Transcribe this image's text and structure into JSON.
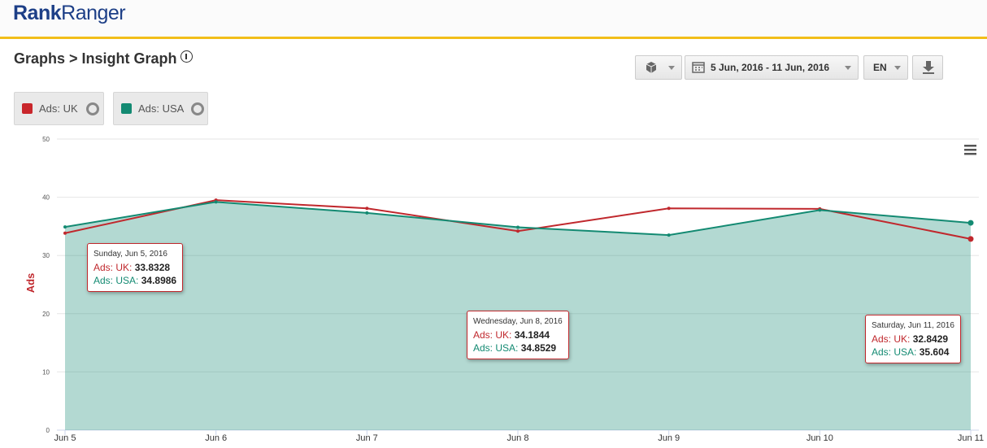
{
  "header": {
    "logo_part1": "Rank",
    "logo_part2": "Ranger",
    "title": "Graphs > Insight Graph"
  },
  "toolbar": {
    "date_range": "5 Jun, 2016 - 11 Jun, 2016",
    "language": "EN"
  },
  "chart_data": {
    "type": "line",
    "y_label": "Ads",
    "categories": [
      "Jun 5",
      "Jun 6",
      "Jun 7",
      "Jun 8",
      "Jun 9",
      "Jun 10",
      "Jun 11"
    ],
    "series": [
      {
        "name": "Ads: UK",
        "color": "#c0282d",
        "fill": false,
        "values": [
          33.8328,
          39.5,
          38.1,
          34.1844,
          38.1,
          38.0,
          32.8429
        ]
      },
      {
        "name": "Ads: USA",
        "color": "#138a72",
        "fill": true,
        "values": [
          34.8986,
          39.2,
          37.3,
          34.8529,
          33.5,
          37.8,
          35.604
        ]
      }
    ],
    "tooltip_titles": [
      "Sunday, Jun 5, 2016",
      null,
      null,
      "Wednesday, Jun 8, 2016",
      null,
      null,
      "Saturday, Jun 11, 2016"
    ],
    "tooltip_separator": ":",
    "ylim": [
      0,
      50
    ],
    "yticks": [
      0,
      10,
      20,
      30,
      40,
      50
    ],
    "grid": true
  }
}
